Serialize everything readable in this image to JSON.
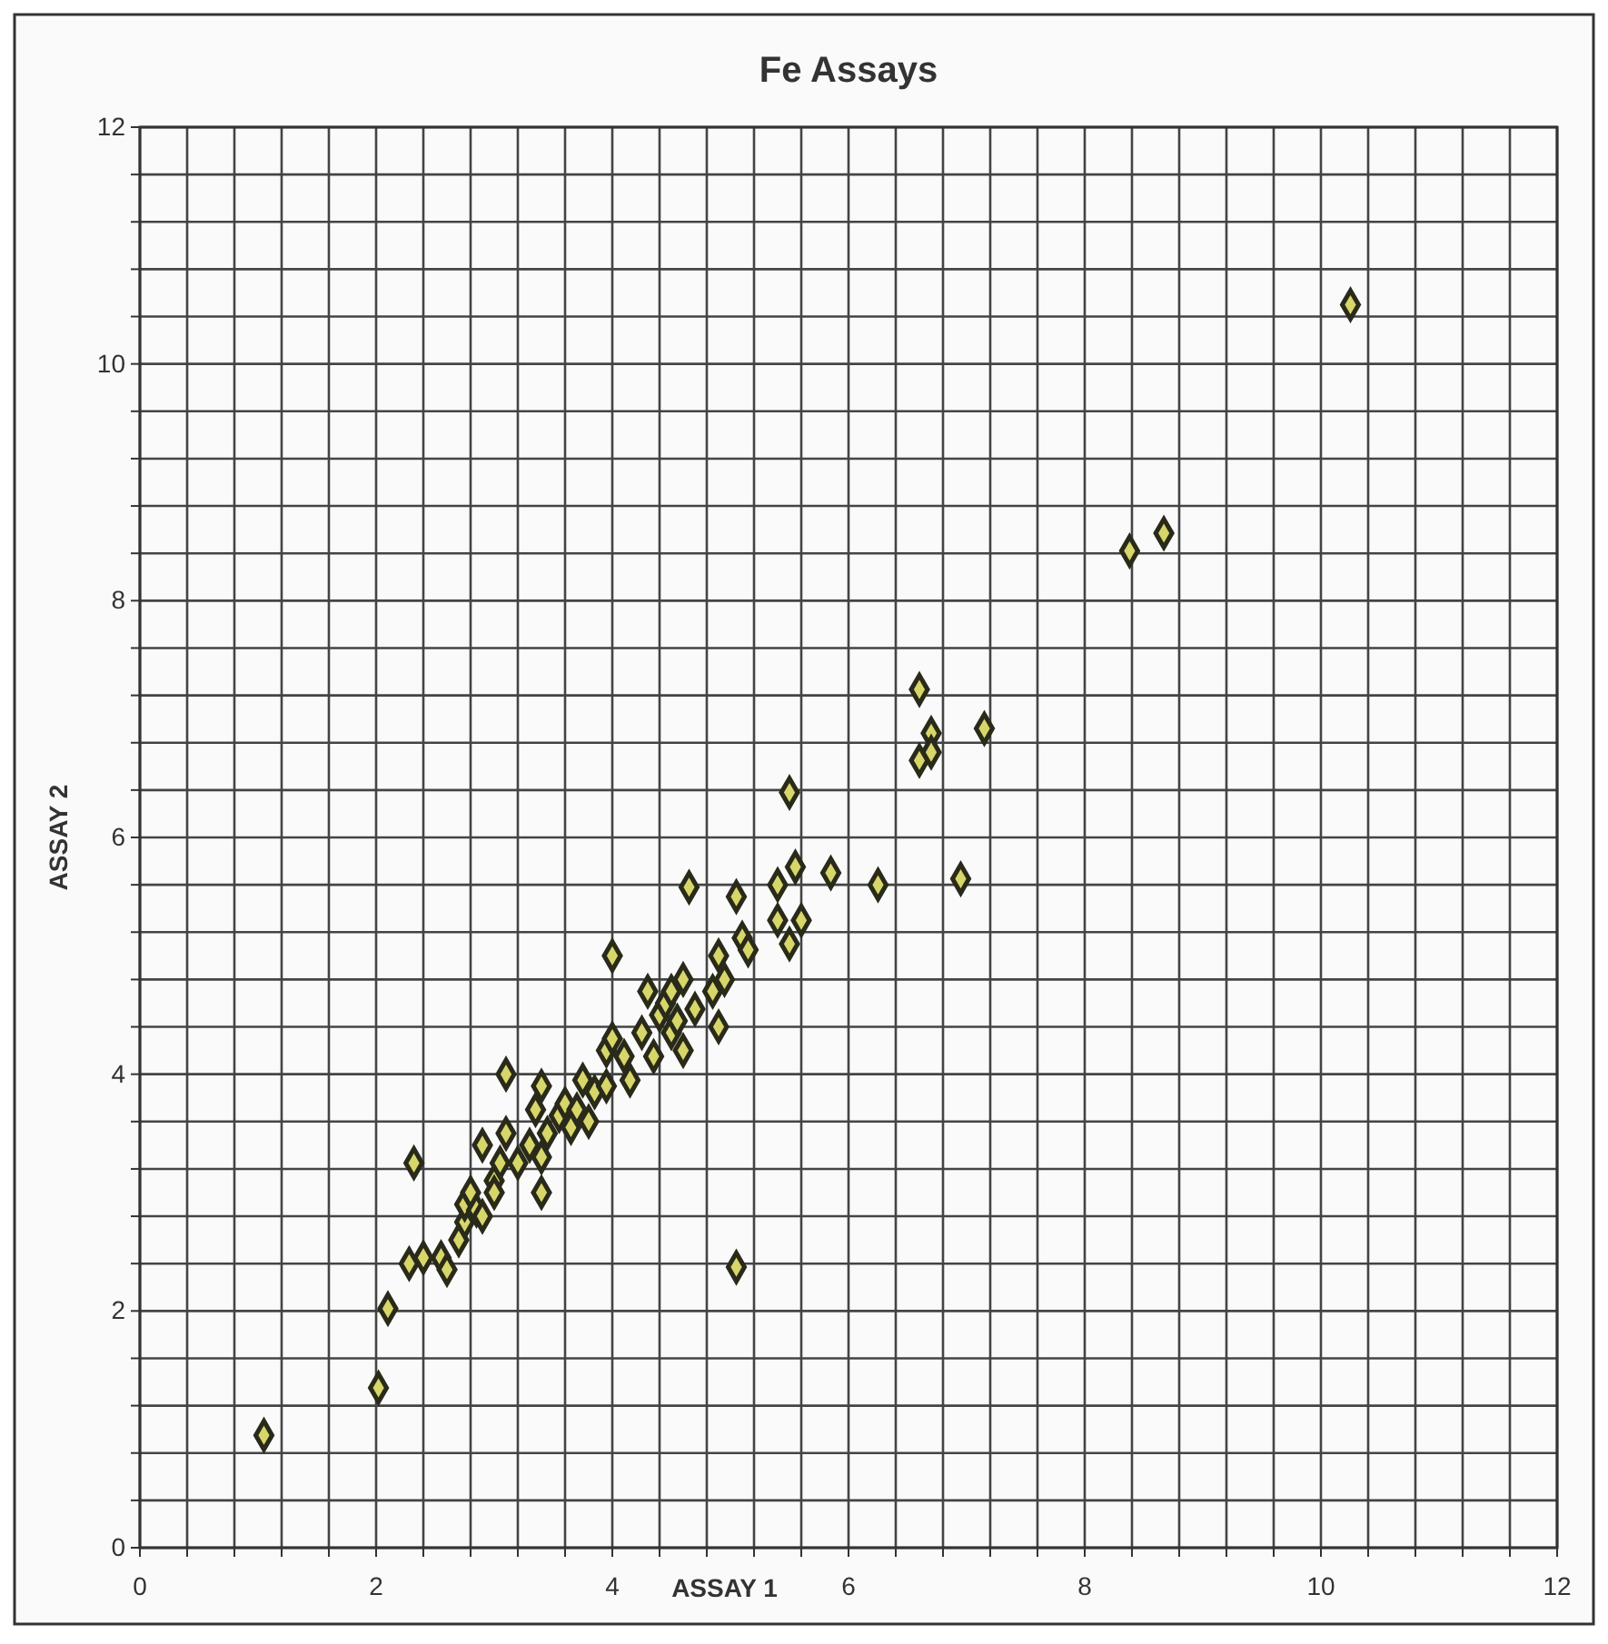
{
  "chart_data": {
    "type": "scatter",
    "title": "Fe Assays",
    "xlabel": "ASSAY 1",
    "ylabel": "ASSAY 2",
    "marker": "diamond",
    "grid": true,
    "xlim": [
      0,
      12
    ],
    "ylim": [
      0,
      12
    ],
    "xticks": [
      0,
      {
        "value": 0.4,
        "label": null
      },
      {
        "value": 0.8,
        "label": null
      },
      {
        "value": 1.2,
        "label": null
      },
      {
        "value": 1.6,
        "label": null
      },
      2,
      {
        "value": 2.4,
        "label": null
      },
      {
        "value": 2.8,
        "label": null
      },
      {
        "value": 3.2,
        "label": null
      },
      {
        "value": 3.6,
        "label": null
      },
      4,
      {
        "value": 4.4,
        "label": null
      },
      {
        "value": 4.8,
        "label": null
      },
      {
        "value": 5.2,
        "label": null
      },
      {
        "value": 5.6,
        "label": null
      },
      6,
      {
        "value": 6.4,
        "label": null
      },
      {
        "value": 6.8,
        "label": null
      },
      {
        "value": 7.2,
        "label": null
      },
      {
        "value": 7.6,
        "label": null
      },
      8,
      {
        "value": 8.4,
        "label": null
      },
      {
        "value": 8.8,
        "label": null
      },
      {
        "value": 9.2,
        "label": null
      },
      {
        "value": 9.6,
        "label": null
      },
      10,
      {
        "value": 10.4,
        "label": null
      },
      {
        "value": 10.8,
        "label": null
      },
      {
        "value": 11.2,
        "label": null
      },
      {
        "value": 11.6,
        "label": null
      },
      12
    ],
    "yticks": [
      0,
      {
        "value": 0.4,
        "label": null
      },
      {
        "value": 0.8,
        "label": null
      },
      {
        "value": 1.2,
        "label": null
      },
      {
        "value": 1.6,
        "label": null
      },
      2,
      {
        "value": 2.4,
        "label": null
      },
      {
        "value": 2.8,
        "label": null
      },
      {
        "value": 3.2,
        "label": null
      },
      {
        "value": 3.6,
        "label": null
      },
      4,
      {
        "value": 4.4,
        "label": null
      },
      {
        "value": 4.8,
        "label": null
      },
      {
        "value": 5.2,
        "label": null
      },
      {
        "value": 5.6,
        "label": null
      },
      6,
      {
        "value": 6.4,
        "label": null
      },
      {
        "value": 6.8,
        "label": null
      },
      {
        "value": 7.2,
        "label": null
      },
      {
        "value": 7.6,
        "label": null
      },
      8,
      {
        "value": 8.4,
        "label": null
      },
      {
        "value": 8.8,
        "label": null
      },
      {
        "value": 9.2,
        "label": null
      },
      {
        "value": 9.6,
        "label": null
      },
      10,
      {
        "value": 10.4,
        "label": null
      },
      {
        "value": 10.8,
        "label": null
      },
      {
        "value": 11.2,
        "label": null
      },
      {
        "value": 11.6,
        "label": null
      },
      12
    ],
    "series": [
      {
        "color": "#d6d66a",
        "x": [
          1.05,
          2.02,
          2.1,
          2.28,
          2.32,
          2.4,
          2.55,
          2.6,
          2.7,
          2.75,
          2.75,
          2.8,
          2.85,
          2.9,
          2.9,
          3.0,
          3.0,
          3.05,
          3.1,
          3.1,
          3.2,
          3.3,
          3.35,
          3.4,
          3.4,
          3.45,
          3.4,
          3.55,
          3.6,
          3.65,
          3.7,
          3.75,
          3.8,
          3.85,
          3.95,
          3.95,
          4.0,
          4.0,
          4.1,
          4.15,
          4.25,
          4.3,
          4.35,
          4.4,
          4.45,
          4.5,
          4.5,
          4.55,
          4.6,
          4.6,
          4.65,
          4.7,
          4.85,
          4.9,
          4.9,
          4.95,
          5.05,
          5.05,
          5.1,
          5.15,
          5.4,
          5.4,
          5.5,
          5.5,
          5.55,
          5.6,
          5.85,
          6.25,
          6.6,
          6.6,
          6.7,
          6.7,
          6.95,
          7.15,
          8.38,
          8.67,
          10.25
        ],
        "values": [
          0.95,
          1.35,
          2.02,
          2.4,
          3.25,
          2.45,
          2.45,
          2.35,
          2.6,
          2.75,
          2.9,
          3.0,
          2.85,
          3.4,
          2.8,
          3.1,
          3.0,
          3.25,
          3.5,
          4.0,
          3.25,
          3.4,
          3.7,
          3.9,
          3.0,
          3.5,
          3.3,
          3.65,
          3.75,
          3.55,
          3.7,
          3.95,
          3.6,
          3.85,
          3.9,
          4.2,
          5.0,
          4.3,
          4.15,
          3.95,
          4.35,
          4.7,
          4.15,
          4.5,
          4.6,
          4.35,
          4.7,
          4.45,
          4.2,
          4.8,
          5.58,
          4.55,
          4.7,
          4.4,
          5.0,
          4.8,
          2.37,
          5.5,
          5.15,
          5.05,
          5.6,
          5.3,
          5.1,
          6.38,
          5.75,
          5.3,
          5.7,
          5.6,
          6.65,
          7.25,
          6.88,
          6.72,
          5.65,
          6.92,
          8.42,
          8.57,
          10.5
        ]
      }
    ]
  }
}
